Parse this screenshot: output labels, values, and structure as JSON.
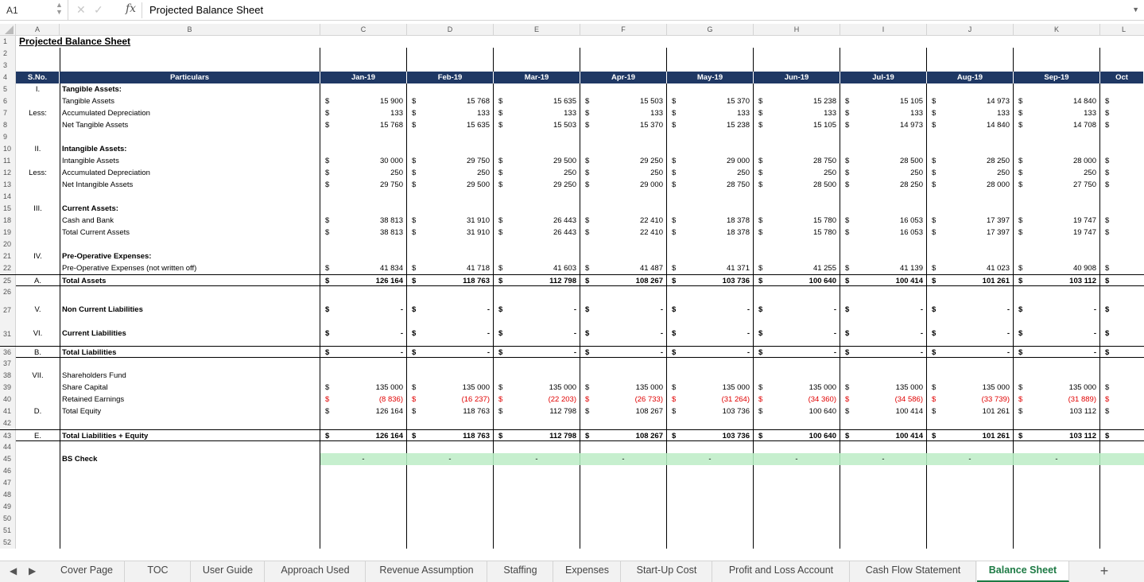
{
  "formula_bar": {
    "cell_ref": "A1",
    "fx_label": "fx",
    "formula": "Projected Balance Sheet"
  },
  "column_letters": [
    "A",
    "B",
    "C",
    "D",
    "E",
    "F",
    "G",
    "H",
    "I",
    "J",
    "K",
    "L"
  ],
  "title": "Projected Balance Sheet",
  "header": {
    "sno": "S.No.",
    "particulars": "Particulars",
    "months": [
      "Jan-19",
      "Feb-19",
      "Mar-19",
      "Apr-19",
      "May-19",
      "Jun-19",
      "Jul-19",
      "Aug-19",
      "Sep-19",
      "Oct"
    ]
  },
  "rows": [
    {
      "n": "1",
      "kind": "title"
    },
    {
      "n": "2"
    },
    {
      "n": "3"
    },
    {
      "n": "4",
      "kind": "header"
    },
    {
      "n": "5",
      "sno": "I.",
      "part": "Tangible Assets:",
      "bold": true
    },
    {
      "n": "6",
      "part": "Tangible Assets",
      "cur": "$",
      "vals": [
        "15 900",
        "15 768",
        "15 635",
        "15 503",
        "15 370",
        "15 238",
        "15 105",
        "14 973",
        "14 840"
      ]
    },
    {
      "n": "7",
      "sno": "Less:",
      "part": "Accumulated Depreciation",
      "cur": "$",
      "vals": [
        "133",
        "133",
        "133",
        "133",
        "133",
        "133",
        "133",
        "133",
        "133"
      ]
    },
    {
      "n": "8",
      "part": "Net Tangible Assets",
      "cur": "$",
      "vals": [
        "15 768",
        "15 635",
        "15 503",
        "15 370",
        "15 238",
        "15 105",
        "14 973",
        "14 840",
        "14 708"
      ]
    },
    {
      "n": "9"
    },
    {
      "n": "10",
      "sno": "II.",
      "part": "Intangible Assets:",
      "bold": true
    },
    {
      "n": "11",
      "part": "Intangible Assets",
      "cur": "$",
      "vals": [
        "30 000",
        "29 750",
        "29 500",
        "29 250",
        "29 000",
        "28 750",
        "28 500",
        "28 250",
        "28 000"
      ]
    },
    {
      "n": "12",
      "sno": "Less:",
      "part": "Accumulated Depreciation",
      "cur": "$",
      "vals": [
        "250",
        "250",
        "250",
        "250",
        "250",
        "250",
        "250",
        "250",
        "250"
      ]
    },
    {
      "n": "13",
      "part": "Net Intangible Assets",
      "cur": "$",
      "vals": [
        "29 750",
        "29 500",
        "29 250",
        "29 000",
        "28 750",
        "28 500",
        "28 250",
        "28 000",
        "27 750"
      ]
    },
    {
      "n": "14"
    },
    {
      "n": "15",
      "sno": "III.",
      "part": "Current Assets:",
      "bold": true
    },
    {
      "n": "18",
      "part": "Cash and Bank",
      "cur": "$",
      "vals": [
        "38 813",
        "31 910",
        "26 443",
        "22 410",
        "18 378",
        "15 780",
        "16 053",
        "17 397",
        "19 747"
      ]
    },
    {
      "n": "19",
      "part": "Total Current Assets",
      "cur": "$",
      "vals": [
        "38 813",
        "31 910",
        "26 443",
        "22 410",
        "18 378",
        "15 780",
        "16 053",
        "17 397",
        "19 747"
      ]
    },
    {
      "n": "20"
    },
    {
      "n": "21",
      "sno": "IV.",
      "part": "Pre-Operative Expenses:",
      "bold": true
    },
    {
      "n": "22",
      "part": "Pre-Operative Expenses (not written off)",
      "cur": "$",
      "vals": [
        "41 834",
        "41 718",
        "41 603",
        "41 487",
        "41 371",
        "41 255",
        "41 139",
        "41 023",
        "40 908"
      ]
    },
    {
      "n": "25",
      "sno": "A.",
      "part": "Total Assets",
      "cur": "$",
      "bold": true,
      "vals": [
        "126 164",
        "118 763",
        "112 798",
        "108 267",
        "103 736",
        "100 640",
        "100 414",
        "101 261",
        "103 112"
      ]
    },
    {
      "n": "26"
    },
    {
      "n": "27",
      "sno": "V.",
      "part": "Non Current Liabilities",
      "cur": "$",
      "bold": true,
      "tall": true,
      "vals": [
        "-",
        "-",
        "-",
        "-",
        "-",
        "-",
        "-",
        "-",
        "-"
      ]
    },
    {
      "n": "31",
      "sno": "VI.",
      "part": "Current Liabilities",
      "cur": "$",
      "bold": true,
      "tall": true,
      "vals": [
        "-",
        "-",
        "-",
        "-",
        "-",
        "-",
        "-",
        "-",
        "-"
      ]
    },
    {
      "n": "36",
      "sno": "B.",
      "part": "Total Liabilities",
      "cur": "$",
      "bold": true,
      "vals": [
        "-",
        "-",
        "-",
        "-",
        "-",
        "-",
        "-",
        "-",
        "-"
      ]
    },
    {
      "n": "37"
    },
    {
      "n": "38",
      "sno": "VII.",
      "part": "Shareholders Fund"
    },
    {
      "n": "39",
      "part": "Share Capital",
      "cur": "$",
      "vals": [
        "135 000",
        "135 000",
        "135 000",
        "135 000",
        "135 000",
        "135 000",
        "135 000",
        "135 000",
        "135 000"
      ]
    },
    {
      "n": "40",
      "part": "Retained Earnings",
      "cur": "$",
      "neg": true,
      "vals": [
        "(8 836)",
        "(16 237)",
        "(22 203)",
        "(26 733)",
        "(31 264)",
        "(34 360)",
        "(34 586)",
        "(33 739)",
        "(31 889)"
      ]
    },
    {
      "n": "41",
      "sno": "D.",
      "part": "Total Equity",
      "cur": "$",
      "vals": [
        "126 164",
        "118 763",
        "112 798",
        "108 267",
        "103 736",
        "100 640",
        "100 414",
        "101 261",
        "103 112"
      ]
    },
    {
      "n": "42"
    },
    {
      "n": "43",
      "sno": "E.",
      "part": "Total Liabilities + Equity",
      "cur": "$",
      "bold": true,
      "vals": [
        "126 164",
        "118 763",
        "112 798",
        "108 267",
        "103 736",
        "100 640",
        "100 414",
        "101 261",
        "103 112"
      ]
    },
    {
      "n": "44"
    },
    {
      "n": "45",
      "part": "BS Check",
      "bold": true,
      "check": true,
      "vals": [
        "-",
        "-",
        "-",
        "-",
        "-",
        "-",
        "-",
        "-",
        "-"
      ]
    },
    {
      "n": "46"
    },
    {
      "n": "47"
    },
    {
      "n": "48"
    },
    {
      "n": "49"
    },
    {
      "n": "50"
    },
    {
      "n": "51"
    },
    {
      "n": "52"
    }
  ],
  "tabs": [
    "Cover Page",
    "TOC",
    "User Guide",
    "Approach Used",
    "Revenue Assumption",
    "Staffing",
    "Expenses",
    "Start-Up Cost",
    "Profit and Loss Account",
    "Cash Flow Statement",
    "Balance Sheet"
  ],
  "active_tab": "Balance Sheet",
  "colors": {
    "header_bg": "#1f3864",
    "check_bg": "#c6efce",
    "negative": "#e00000",
    "active_tab": "#1d7a44"
  }
}
